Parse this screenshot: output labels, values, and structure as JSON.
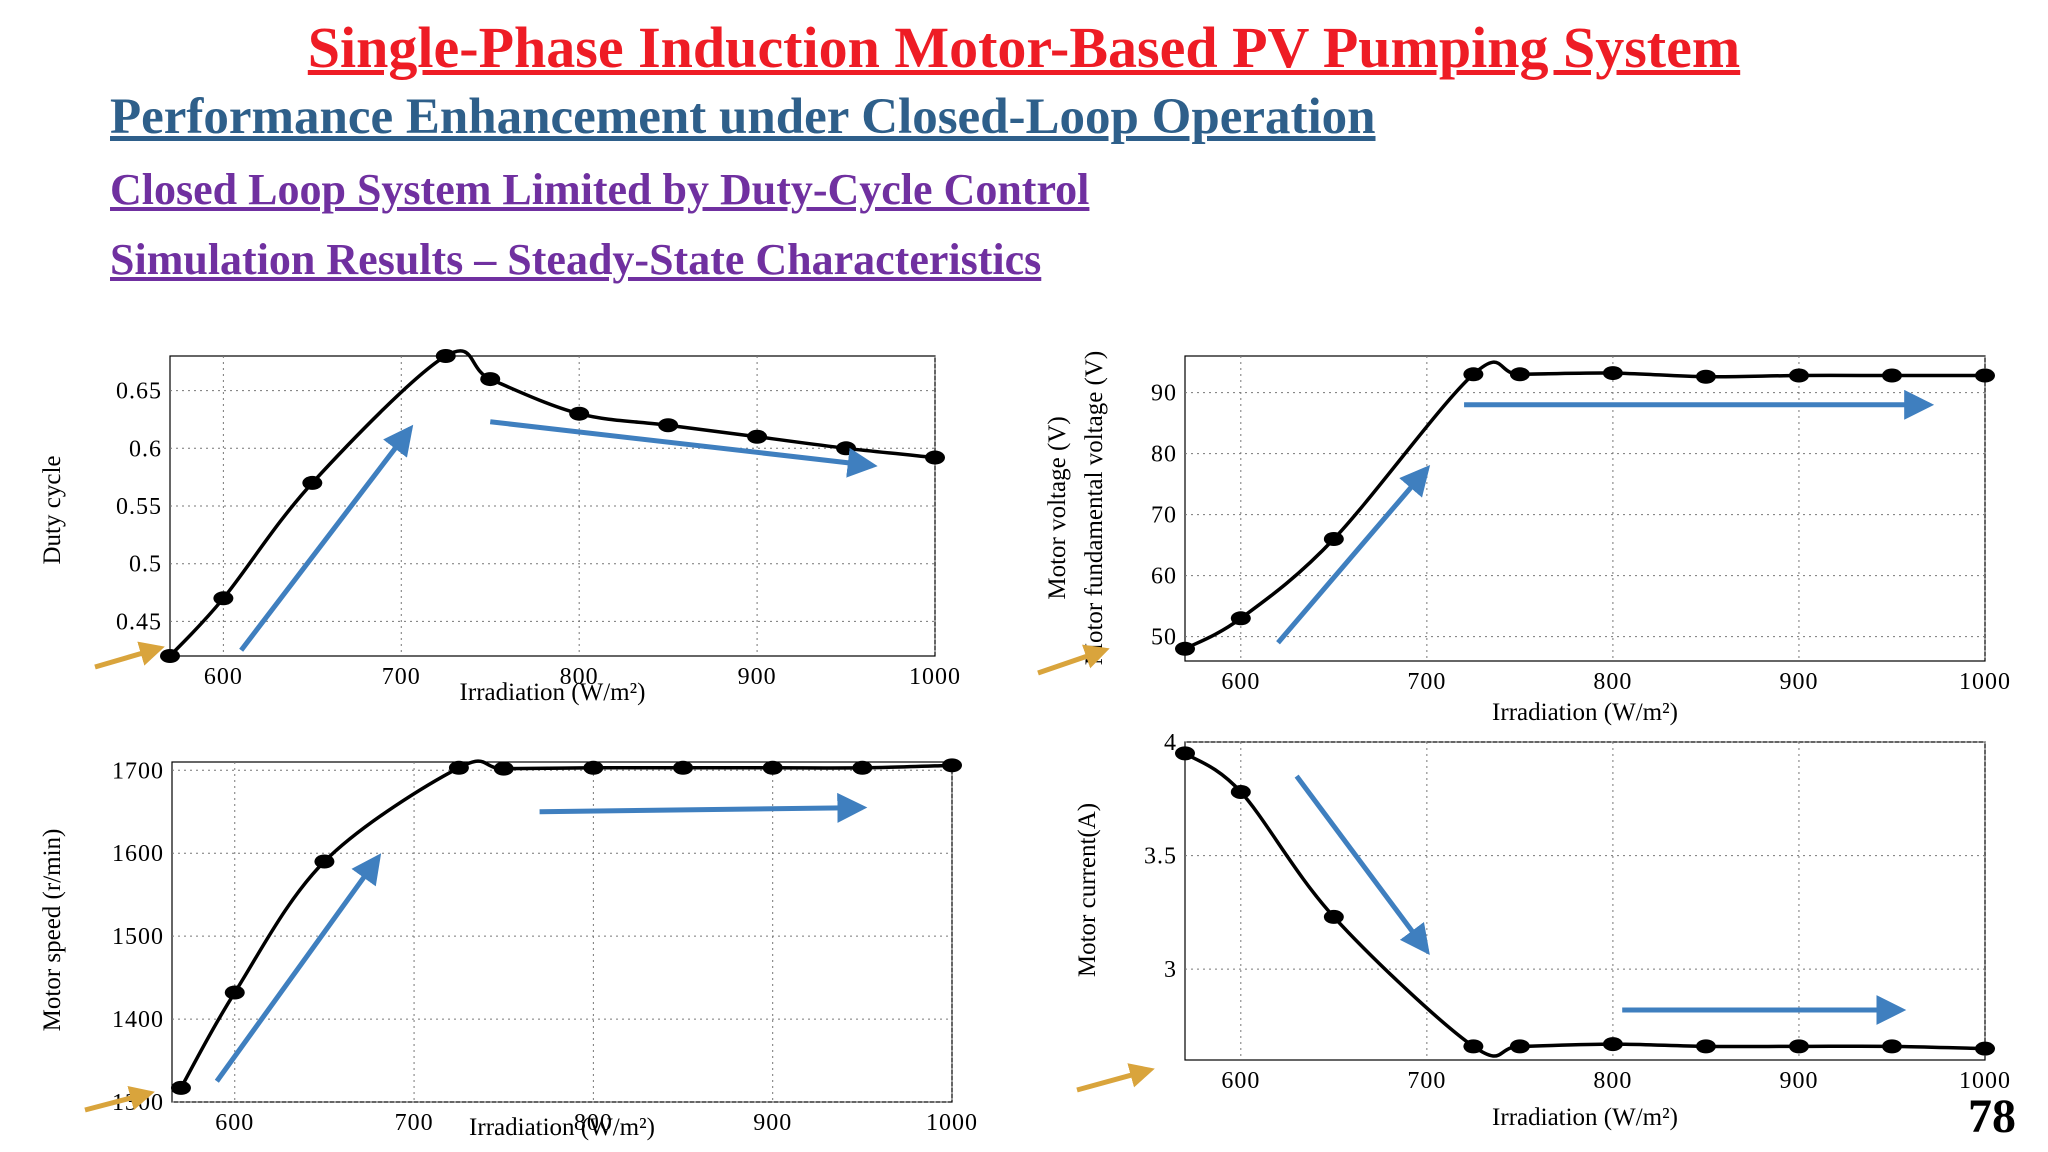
{
  "slide": {
    "title": "Single-Phase Induction Motor-Based PV Pumping System",
    "subtitle": "Performance Enhancement under Closed-Loop Operation",
    "heading1": "Closed Loop System Limited by Duty-Cycle Control",
    "heading2": "Simulation Results – Steady-State Characteristics",
    "page_number": "78"
  },
  "colors": {
    "title": "#ee1c25",
    "subtitle": "#2e5f8a",
    "heading": "#7030a0",
    "trend_arrow": "#3f7fbf",
    "pointer_arrow": "#d9a43c",
    "curve": "#000000"
  },
  "chart_data": [
    {
      "type": "line",
      "xlabel": "Irradiation (W/m²)",
      "ylabel": "Duty cycle",
      "xlim": [
        570,
        1000
      ],
      "ylim": [
        0.42,
        0.68
      ],
      "xticks": [
        "600",
        "700",
        "800",
        "900",
        "1000"
      ],
      "yticks": [
        "0.45",
        "0.5",
        "0.55",
        "0.6",
        "0.65"
      ],
      "x": [
        570,
        600,
        650,
        725,
        750,
        800,
        850,
        900,
        950,
        1000
      ],
      "y": [
        0.42,
        0.47,
        0.57,
        0.68,
        0.66,
        0.63,
        0.62,
        0.61,
        0.6,
        0.592
      ],
      "grid": true,
      "trend_arrows": [
        {
          "from": [
            610,
            0.425
          ],
          "to": [
            705,
            0.617
          ]
        },
        {
          "from": [
            750,
            0.623
          ],
          "to": [
            965,
            0.585
          ]
        }
      ]
    },
    {
      "type": "line",
      "xlabel": "Irradiation (W/m²)",
      "ylabel": "Motor voltage (V) Motor fundamental voltage (V)",
      "ylabel_lines": [
        "Motor voltage (V)",
        "Motor fundamental voltage (V)"
      ],
      "xlim": [
        570,
        1000
      ],
      "ylim": [
        46,
        96
      ],
      "xticks": [
        "600",
        "700",
        "800",
        "900",
        "1000"
      ],
      "yticks": [
        "50",
        "60",
        "70",
        "80",
        "90"
      ],
      "x": [
        570,
        600,
        650,
        725,
        750,
        800,
        850,
        900,
        950,
        1000
      ],
      "y": [
        48,
        53,
        66,
        93,
        93,
        93.2,
        92.6,
        92.8,
        92.8,
        92.8
      ],
      "grid": true,
      "trend_arrows": [
        {
          "from": [
            620,
            49
          ],
          "to": [
            700,
            77.5
          ]
        },
        {
          "from": [
            720,
            88
          ],
          "to": [
            970,
            88
          ]
        }
      ]
    },
    {
      "type": "line",
      "xlabel": "Irradiation (W/m²)",
      "ylabel": "Motor speed (r/min)",
      "xlim": [
        565,
        1000
      ],
      "ylim": [
        1300,
        1710
      ],
      "xticks": [
        "600",
        "700",
        "800",
        "900",
        "1000"
      ],
      "yticks": [
        "1300",
        "1400",
        "1500",
        "1600",
        "1700"
      ],
      "x": [
        570,
        600,
        650,
        725,
        750,
        800,
        850,
        900,
        950,
        1000
      ],
      "y": [
        1317,
        1432,
        1590,
        1703,
        1702,
        1703,
        1703,
        1703,
        1703,
        1706
      ],
      "grid": true,
      "trend_arrows": [
        {
          "from": [
            590,
            1325
          ],
          "to": [
            680,
            1595
          ]
        },
        {
          "from": [
            770,
            1650
          ],
          "to": [
            950,
            1655
          ]
        }
      ]
    },
    {
      "type": "line",
      "xlabel": "Irradiation (W/m²)",
      "ylabel": "Motor current(A)",
      "xlim": [
        570,
        1000
      ],
      "ylim": [
        2.6,
        4.0
      ],
      "xticks": [
        "600",
        "700",
        "800",
        "900",
        "1000"
      ],
      "yticks": [
        "3",
        "3.5",
        "4"
      ],
      "x": [
        570,
        600,
        650,
        725,
        750,
        800,
        850,
        900,
        950,
        1000
      ],
      "y": [
        3.95,
        3.78,
        3.23,
        2.66,
        2.66,
        2.67,
        2.66,
        2.66,
        2.66,
        2.65
      ],
      "grid": true,
      "trend_arrows": [
        {
          "from": [
            630,
            3.85
          ],
          "to": [
            700,
            3.08
          ]
        },
        {
          "from": [
            805,
            2.82
          ],
          "to": [
            955,
            2.82
          ]
        }
      ]
    }
  ]
}
